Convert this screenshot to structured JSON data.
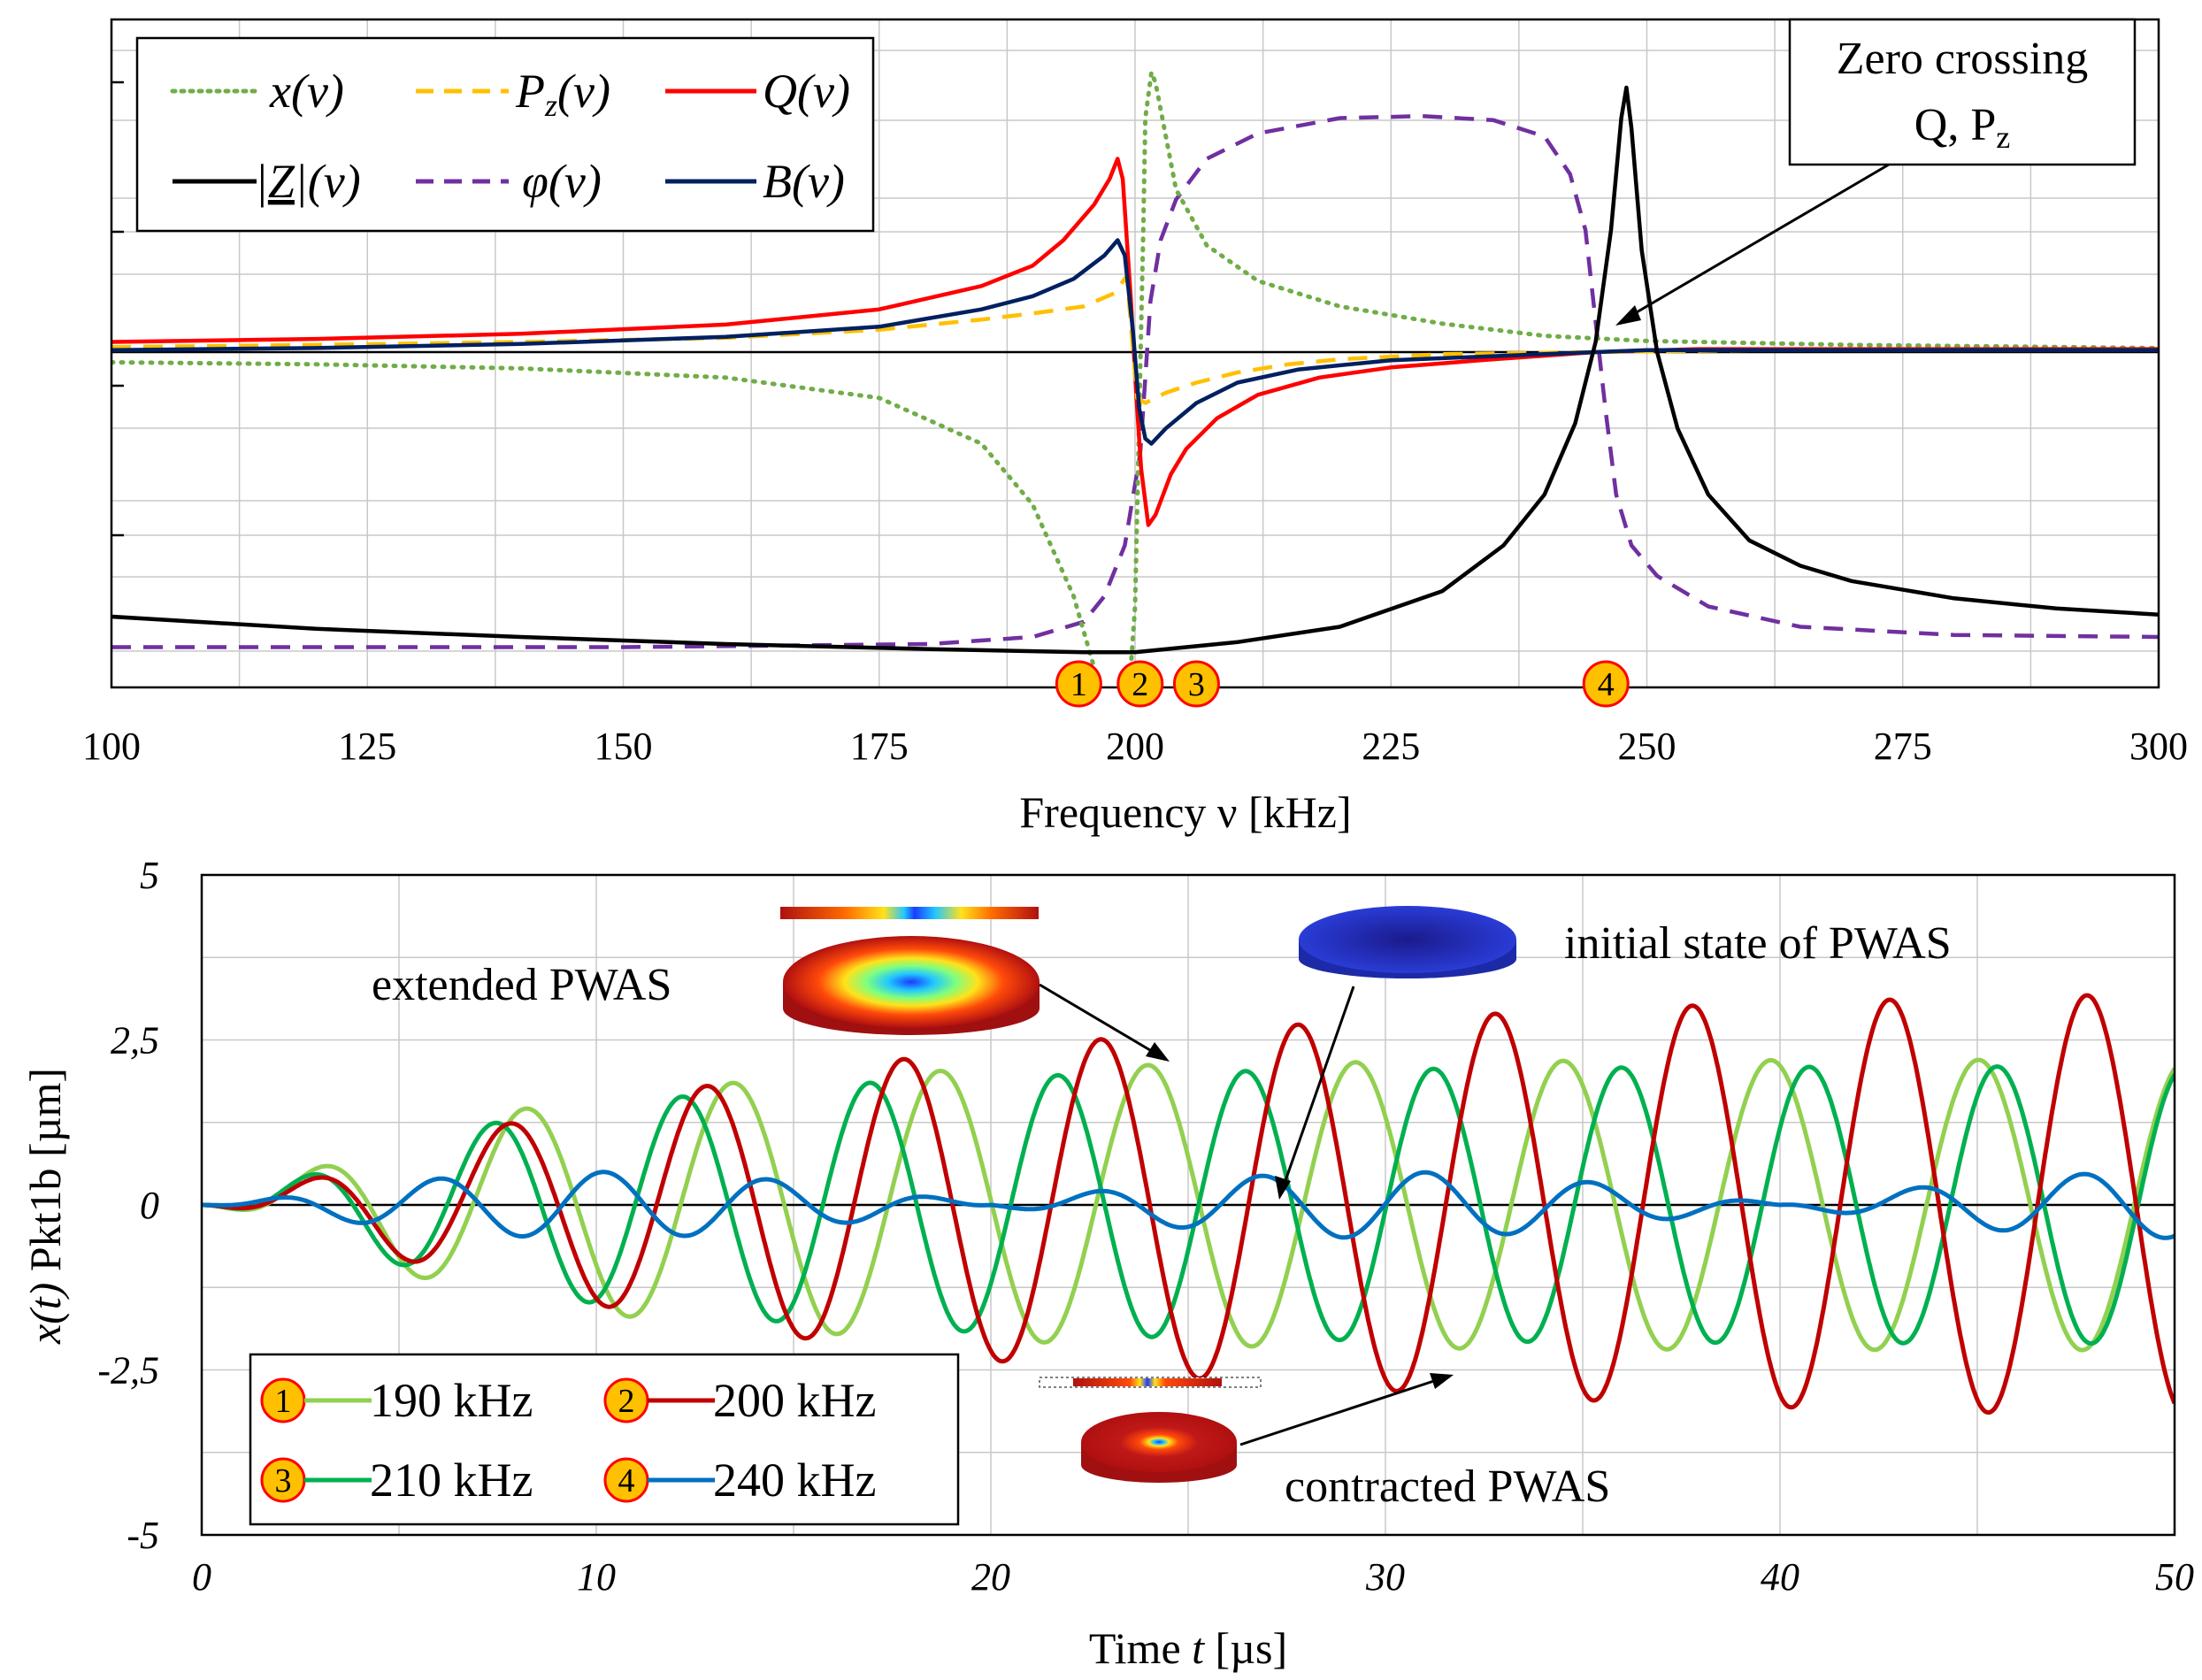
{
  "chart_data": [
    {
      "type": "line",
      "title": "",
      "xlabel": "Frequency ν [kHz]",
      "ylabel": "",
      "xlim": [
        100,
        300
      ],
      "xticks": [
        "100",
        "125",
        "150",
        "175",
        "200",
        "225",
        "250",
        "275",
        "300"
      ],
      "yticks_labeled": false,
      "legend": {
        "position": "top-left",
        "entries": [
          {
            "key": "x",
            "label": "x(ν)",
            "color": "#70ad47",
            "style": "dotted"
          },
          {
            "key": "Pz",
            "label_main": "P",
            "label_sub": "z",
            "label_rest": "(ν)",
            "color": "#ffc000",
            "style": "dashed"
          },
          {
            "key": "Q",
            "label": "Q(ν)",
            "color": "#ff0000",
            "style": "solid"
          },
          {
            "key": "Z",
            "label_pre": "|",
            "label_main": "Z",
            "label_rest": "|(ν)",
            "color": "#000000",
            "style": "solid"
          },
          {
            "key": "phi",
            "label": "φ(ν)",
            "color": "#7030a0",
            "style": "dashed"
          },
          {
            "key": "B",
            "label": "B(ν)",
            "color": "#002060",
            "style": "solid"
          }
        ]
      },
      "annotation": {
        "line1": "Zero crossing",
        "line2_main": "Q, P",
        "line2_sub": "z",
        "target_x": 245
      },
      "markers": [
        {
          "label": "1",
          "x": 194.5
        },
        {
          "label": "2",
          "x": 200.5
        },
        {
          "label": "3",
          "x": 206
        },
        {
          "label": "4",
          "x": 246
        }
      ],
      "series": [
        {
          "name": "x(ν)",
          "points": [
            [
              100,
              -0.1
            ],
            [
              120,
              -0.12
            ],
            [
              140,
              -0.16
            ],
            [
              160,
              -0.25
            ],
            [
              175,
              -0.45
            ],
            [
              185,
              -0.9
            ],
            [
              190,
              -1.5
            ],
            [
              194,
              -2.4
            ],
            [
              196,
              -3.1
            ],
            [
              198,
              -3.8
            ],
            [
              199,
              -3.95
            ],
            [
              200,
              -2.5
            ],
            [
              200.8,
              1.2
            ],
            [
              201,
              2.3
            ],
            [
              201.6,
              2.75
            ],
            [
              202,
              2.65
            ],
            [
              204,
              1.6
            ],
            [
              207,
              1.05
            ],
            [
              212,
              0.7
            ],
            [
              220,
              0.45
            ],
            [
              230,
              0.28
            ],
            [
              240,
              0.16
            ],
            [
              250,
              0.11
            ],
            [
              270,
              0.07
            ],
            [
              300,
              0.04
            ]
          ]
        },
        {
          "name": "Pz(ν)",
          "points": [
            [
              100,
              0.05
            ],
            [
              120,
              0.07
            ],
            [
              140,
              0.1
            ],
            [
              160,
              0.14
            ],
            [
              175,
              0.22
            ],
            [
              185,
              0.32
            ],
            [
              190,
              0.38
            ],
            [
              195,
              0.45
            ],
            [
              198,
              0.58
            ],
            [
              199.2,
              0.75
            ],
            [
              200.2,
              -0.45
            ],
            [
              201,
              -0.5
            ],
            [
              203,
              -0.4
            ],
            [
              206,
              -0.3
            ],
            [
              210,
              -0.2
            ],
            [
              215,
              -0.12
            ],
            [
              220,
              -0.07
            ],
            [
              230,
              -0.02
            ],
            [
              245,
              0
            ],
            [
              260,
              0.02
            ],
            [
              300,
              0.02
            ]
          ]
        },
        {
          "name": "Q(ν)",
          "points": [
            [
              100,
              0.1
            ],
            [
              120,
              0.13
            ],
            [
              140,
              0.18
            ],
            [
              160,
              0.27
            ],
            [
              175,
              0.42
            ],
            [
              185,
              0.65
            ],
            [
              190,
              0.85
            ],
            [
              193,
              1.1
            ],
            [
              196,
              1.45
            ],
            [
              197.5,
              1.7
            ],
            [
              198.3,
              1.9
            ],
            [
              198.8,
              1.7
            ],
            [
              199.6,
              0.5
            ],
            [
              200.1,
              -0.4
            ],
            [
              200.6,
              -1.15
            ],
            [
              201.3,
              -1.7
            ],
            [
              202,
              -1.6
            ],
            [
              203.5,
              -1.2
            ],
            [
              205,
              -0.95
            ],
            [
              208,
              -0.65
            ],
            [
              212,
              -0.42
            ],
            [
              218,
              -0.25
            ],
            [
              225,
              -0.15
            ],
            [
              235,
              -0.07
            ],
            [
              245,
              0
            ],
            [
              255,
              0.03
            ],
            [
              300,
              0.03
            ]
          ]
        },
        {
          "name": "|Z|(ν)",
          "points": [
            [
              100,
              -2.6
            ],
            [
              120,
              -2.72
            ],
            [
              140,
              -2.8
            ],
            [
              160,
              -2.87
            ],
            [
              180,
              -2.92
            ],
            [
              195,
              -2.95
            ],
            [
              200,
              -2.95
            ],
            [
              205,
              -2.9
            ],
            [
              210,
              -2.85
            ],
            [
              220,
              -2.7
            ],
            [
              230,
              -2.35
            ],
            [
              236,
              -1.9
            ],
            [
              240,
              -1.4
            ],
            [
              243,
              -0.7
            ],
            [
              245,
              0.1
            ],
            [
              246.5,
              1.2
            ],
            [
              247.5,
              2.3
            ],
            [
              248,
              2.6
            ],
            [
              248.5,
              2.2
            ],
            [
              249.5,
              1.0
            ],
            [
              251,
              0
            ],
            [
              253,
              -0.75
            ],
            [
              256,
              -1.4
            ],
            [
              260,
              -1.85
            ],
            [
              265,
              -2.1
            ],
            [
              270,
              -2.25
            ],
            [
              280,
              -2.42
            ],
            [
              290,
              -2.52
            ],
            [
              300,
              -2.58
            ]
          ]
        },
        {
          "name": "φ(ν)",
          "points": [
            [
              100,
              -2.9
            ],
            [
              150,
              -2.9
            ],
            [
              180,
              -2.87
            ],
            [
              190,
              -2.8
            ],
            [
              195,
              -2.65
            ],
            [
              197,
              -2.4
            ],
            [
              199,
              -1.9
            ],
            [
              200.5,
              -1.0
            ],
            [
              201.5,
              0.5
            ],
            [
              202.5,
              1.1
            ],
            [
              204,
              1.5
            ],
            [
              207,
              1.9
            ],
            [
              212,
              2.15
            ],
            [
              220,
              2.3
            ],
            [
              228,
              2.32
            ],
            [
              235,
              2.28
            ],
            [
              240,
              2.12
            ],
            [
              242.5,
              1.75
            ],
            [
              244,
              1.2
            ],
            [
              245,
              0.3
            ],
            [
              246,
              -0.6
            ],
            [
              247,
              -1.4
            ],
            [
              248.5,
              -1.9
            ],
            [
              251,
              -2.2
            ],
            [
              256,
              -2.5
            ],
            [
              265,
              -2.7
            ],
            [
              280,
              -2.78
            ],
            [
              300,
              -2.8
            ]
          ]
        },
        {
          "name": "B(ν)",
          "points": [
            [
              100,
              0.02
            ],
            [
              120,
              0.04
            ],
            [
              140,
              0.08
            ],
            [
              160,
              0.15
            ],
            [
              175,
              0.25
            ],
            [
              185,
              0.42
            ],
            [
              190,
              0.55
            ],
            [
              194,
              0.72
            ],
            [
              197,
              0.95
            ],
            [
              198.3,
              1.1
            ],
            [
              199,
              0.95
            ],
            [
              199.8,
              0.2
            ],
            [
              200.4,
              -0.55
            ],
            [
              201,
              -0.85
            ],
            [
              201.6,
              -0.9
            ],
            [
              203,
              -0.75
            ],
            [
              206,
              -0.5
            ],
            [
              210,
              -0.3
            ],
            [
              216,
              -0.17
            ],
            [
              225,
              -0.08
            ],
            [
              240,
              -0.02
            ],
            [
              250,
              0.02
            ],
            [
              300,
              0.02
            ]
          ]
        }
      ]
    },
    {
      "type": "line",
      "title": "",
      "xlabel_pre": "Time ",
      "xlabel_var": "t",
      "xlabel_post": " [µs]",
      "ylabel_var": "x(t)",
      "ylabel_post": " Pkt1b [µm]",
      "xlim": [
        0,
        50
      ],
      "ylim": [
        -5,
        5
      ],
      "xticks": [
        "0",
        "10",
        "20",
        "30",
        "40",
        "50"
      ],
      "yticks": [
        "5",
        "2,5",
        "0",
        "-2,5",
        "-5"
      ],
      "legend": {
        "position": "bottom-left",
        "entries": [
          {
            "marker": "1",
            "label": "190 kHz",
            "color": "#92d050"
          },
          {
            "marker": "2",
            "label": "200 kHz",
            "color": "#c00000"
          },
          {
            "marker": "3",
            "label": "210 kHz",
            "color": "#00b050"
          },
          {
            "marker": "4",
            "label": "240 kHz",
            "color": "#0070c0"
          }
        ]
      },
      "annotations": {
        "extended": "extended PWAS",
        "initial": "initial state of PWAS",
        "contracted": "contracted PWAS"
      },
      "series": [
        {
          "name": "190 kHz",
          "freq_khz": 190,
          "envelope_peak_um": 2.2,
          "grow_time_us": 22
        },
        {
          "name": "200 kHz",
          "freq_khz": 200,
          "envelope_peak_um": 3.2,
          "grow_time_us": 50
        },
        {
          "name": "210 kHz",
          "freq_khz": 210,
          "envelope_peak_um": 2.1,
          "grow_time_us": 24
        },
        {
          "name": "240 kHz",
          "freq_khz": 240,
          "envelope_peak_um": 0.5,
          "beat_period_us": 20
        }
      ]
    }
  ]
}
